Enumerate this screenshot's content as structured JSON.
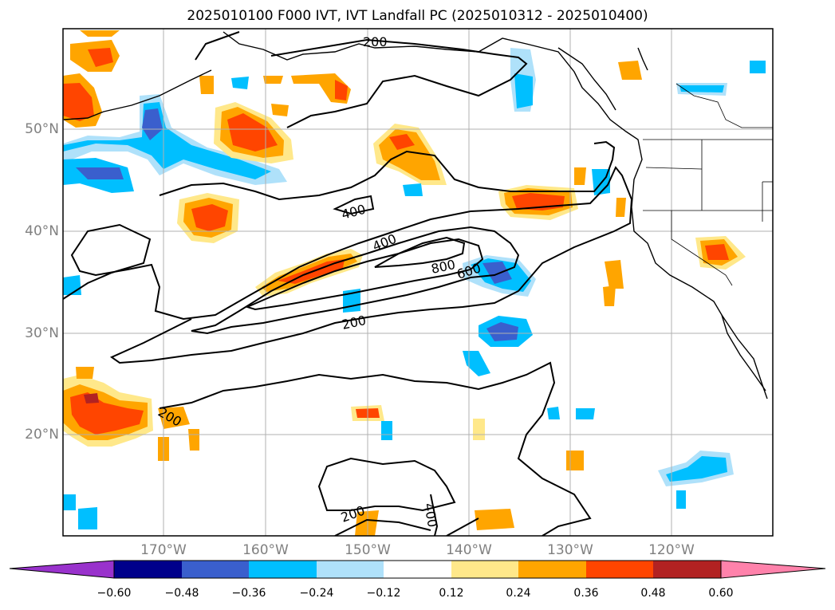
{
  "title": "2025010100 F000 IVT, IVT Landfall PC (2025010312 - 2025010400)",
  "lat_labels": [
    "50°N",
    "40°N",
    "30°N",
    "20°N"
  ],
  "lon_labels": [
    "170°W",
    "160°W",
    "150°W",
    "140°W",
    "130°W",
    "120°W"
  ],
  "contour_labels": [
    "200",
    "400",
    "400",
    "800",
    "600",
    "200",
    "200",
    "200",
    "400"
  ],
  "colorbar": {
    "ticks": [
      "−0.60",
      "−0.48",
      "−0.36",
      "−0.24",
      "−0.12",
      "0.12",
      "0.24",
      "0.36",
      "0.48",
      "0.60"
    ],
    "colors": [
      "#9932cc",
      "#00008b",
      "#3a5fcd",
      "#00bfff",
      "#afe1fa",
      "#ffffff",
      "#ffe88a",
      "#ffa500",
      "#ff4500",
      "#b22222",
      "#ff82ab"
    ]
  },
  "map_data": {
    "extent_lon": [
      -180,
      -110
    ],
    "extent_lat": [
      10,
      60
    ],
    "gridlines": {
      "lon": [
        -170,
        -160,
        -150,
        -140,
        -130,
        -120
      ],
      "lat": [
        20,
        30,
        40,
        50
      ]
    },
    "ivt_contour_levels": [
      200,
      400,
      600,
      800
    ]
  }
}
